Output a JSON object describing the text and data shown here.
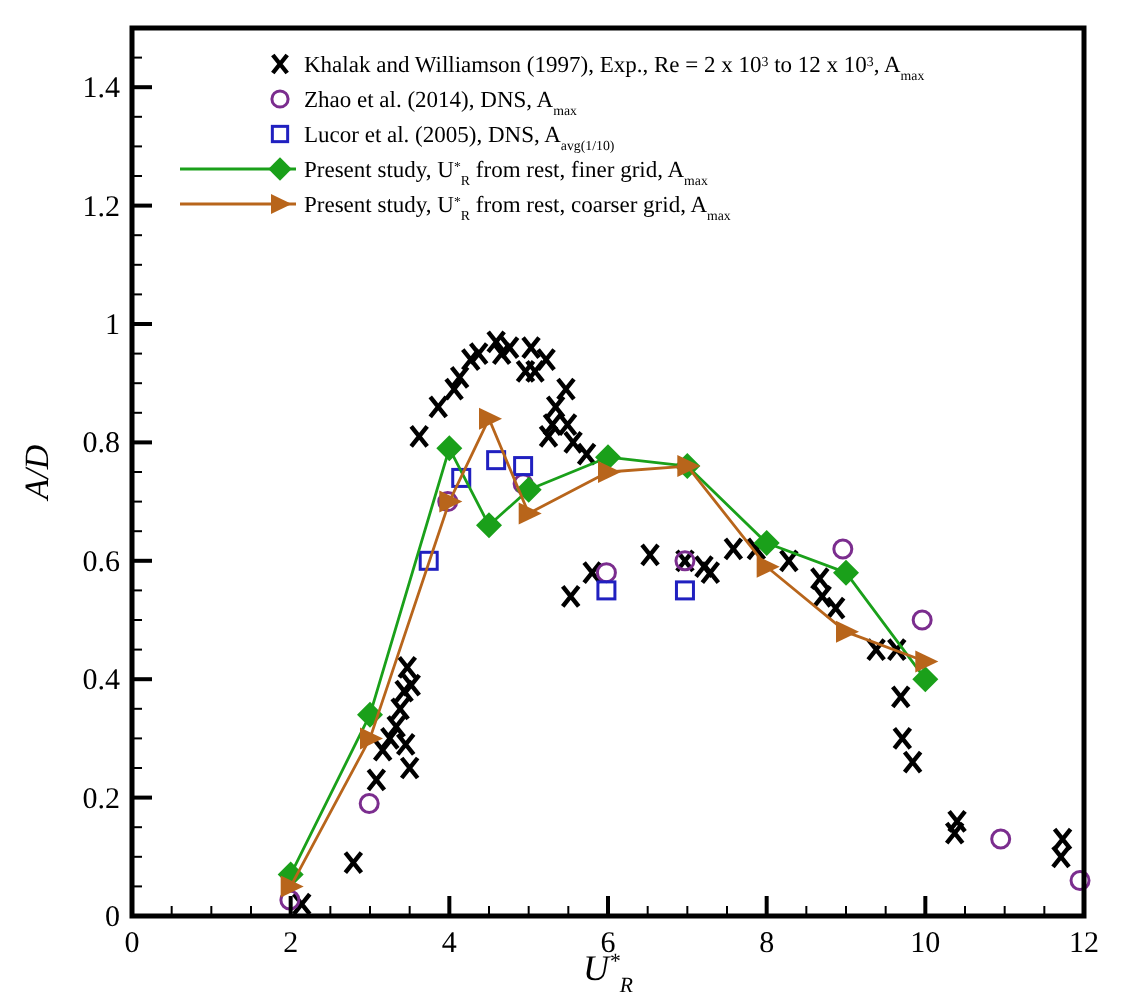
{
  "chart_data": {
    "type": "scatter",
    "xlabel": "U$^{*}$$_{R}$",
    "ylabel": "A/D",
    "xlim": [
      0,
      12
    ],
    "ylim": [
      0,
      1.5
    ],
    "xticks": [
      0,
      2,
      4,
      6,
      8,
      10,
      12
    ],
    "yticks": [
      0,
      0.2,
      0.4,
      0.6,
      0.8,
      1,
      1.2,
      1.4
    ],
    "grid": false,
    "legend": "top right",
    "series": [
      {
        "name": "Khalak and Williamson (1997), Exp., Re = 2 x 10$^{3}$ to 12 x 10$^{3}$, A$_{max}$",
        "marker": "cross",
        "color": "#000000",
        "x": [
          2.14,
          2.79,
          3.08,
          3.16,
          3.25,
          3.33,
          3.38,
          3.43,
          3.47,
          3.52,
          3.5,
          3.45,
          3.62,
          3.86,
          4.06,
          4.13,
          4.27,
          4.37,
          4.59,
          4.66,
          4.76,
          5.03,
          4.96,
          5.08,
          5.22,
          5.47,
          5.34,
          5.3,
          5.25,
          5.49,
          5.56,
          5.73,
          5.8,
          5.53,
          6.53,
          6.97,
          7.21,
          7.29,
          7.58,
          7.87,
          8.28,
          8.67,
          8.7,
          8.87,
          9.38,
          9.64,
          9.69,
          9.71,
          9.84,
          10.4,
          10.37,
          11.73,
          11.71
        ],
        "values": [
          0.02,
          0.09,
          0.23,
          0.28,
          0.3,
          0.32,
          0.35,
          0.38,
          0.42,
          0.39,
          0.25,
          0.29,
          0.81,
          0.86,
          0.89,
          0.91,
          0.94,
          0.95,
          0.97,
          0.95,
          0.96,
          0.96,
          0.92,
          0.92,
          0.94,
          0.89,
          0.86,
          0.83,
          0.81,
          0.83,
          0.8,
          0.78,
          0.58,
          0.54,
          0.61,
          0.6,
          0.59,
          0.58,
          0.62,
          0.62,
          0.6,
          0.57,
          0.54,
          0.52,
          0.45,
          0.45,
          0.37,
          0.3,
          0.26,
          0.16,
          0.14,
          0.13,
          0.1
        ]
      },
      {
        "name": "Zhao et al. (2014), DNS, A$_{max}$",
        "type": "scatter",
        "marker": "circle",
        "color": "#7b2d8e",
        "x": [
          1.99,
          2.99,
          3.98,
          4.93,
          5.98,
          6.97,
          8.96,
          9.96,
          10.95,
          11.95
        ],
        "values": [
          0.027,
          0.19,
          0.7,
          0.73,
          0.58,
          0.6,
          0.62,
          0.5,
          0.13,
          0.06
        ]
      },
      {
        "name": "Lucor et al. (2005), DNS, A$_{avg(1/10)}$",
        "type": "scatter",
        "marker": "square",
        "color": "#2020c0",
        "x": [
          3.74,
          4.15,
          4.59,
          4.93,
          5.98,
          6.97
        ],
        "values": [
          0.6,
          0.74,
          0.77,
          0.76,
          0.55,
          0.55
        ]
      },
      {
        "name": "Present study, U$^{*}$$_{R}$ from rest, finer grid, A$_{max}$",
        "type": "line",
        "marker": "diamond",
        "color": "#1aa01a",
        "x": [
          2,
          3,
          4,
          4.5,
          5,
          6,
          7,
          8,
          9,
          10
        ],
        "values": [
          0.07,
          0.34,
          0.79,
          0.66,
          0.72,
          0.775,
          0.76,
          0.63,
          0.58,
          0.4
        ]
      },
      {
        "name": "Present study, U$^{*}$$_{R}$ from rest, coarser grid, A$_{max}$",
        "type": "line",
        "marker": "triangle",
        "color": "#b8651b",
        "x": [
          2,
          3,
          4,
          4.5,
          5,
          6,
          7,
          8,
          9,
          10
        ],
        "values": [
          0.05,
          0.3,
          0.7,
          0.84,
          0.68,
          0.75,
          0.76,
          0.59,
          0.48,
          0.43
        ]
      }
    ]
  }
}
